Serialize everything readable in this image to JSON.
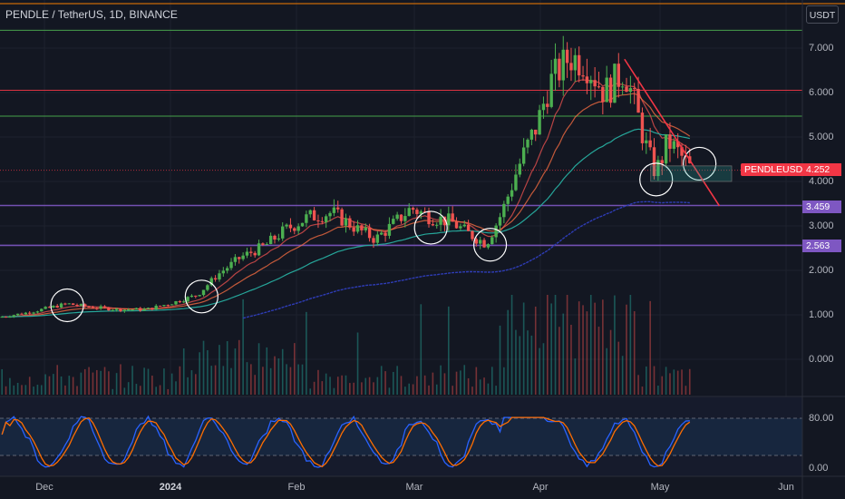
{
  "header": {
    "title": "PENDLE / TetherUS, 1D, BINANCE"
  },
  "toolbar": {
    "currency_label": "USDT"
  },
  "price_axis": {
    "labels": [
      "7.000",
      "6.000",
      "5.000",
      "4.000",
      "3.000",
      "2.000",
      "1.000",
      "0.000"
    ]
  },
  "time_axis": {
    "labels": [
      "Dec",
      "2024",
      "Feb",
      "Mar",
      "Apr",
      "May",
      "Jun"
    ]
  },
  "stoch_axis": {
    "labels": [
      "80.00",
      "0.00"
    ]
  },
  "tags": {
    "ticker": "PENDLEUSDT",
    "last_price": "4.252",
    "level_a": "3.459",
    "level_b": "2.563"
  },
  "colors": {
    "background": "#131722",
    "up": "#26a69a",
    "up_candle": "#4caf50",
    "down": "#ef5350",
    "purple_line": "#7e57c2",
    "green_line": "#4caf50",
    "red_line": "#f23645",
    "ema_teal": "#26a69a",
    "ema_navy": "#2e3cb5",
    "stoch_k": "#2962ff",
    "stoch_d": "#ff6d00"
  },
  "chart_data": {
    "type": "candlestick",
    "symbol": "PENDLE / TetherUS",
    "interval": "1D",
    "exchange": "BINANCE",
    "ylim": [
      -0.5,
      7.6
    ],
    "x_range": [
      "2023-11-18",
      "2024-06-08"
    ],
    "horizontal_levels": [
      {
        "price": 7.4,
        "color": "green"
      },
      {
        "price": 6.05,
        "color": "red"
      },
      {
        "price": 5.47,
        "color": "green"
      },
      {
        "price": 3.459,
        "color": "purple"
      },
      {
        "price": 2.563,
        "color": "purple"
      }
    ],
    "last_price": 4.252,
    "ohlc_path": [
      [
        "2023-11-18",
        0.95
      ],
      [
        "2023-11-25",
        1.05
      ],
      [
        "2023-11-30",
        1.15
      ],
      [
        "2023-12-05",
        1.25
      ],
      [
        "2023-12-10",
        1.18
      ],
      [
        "2023-12-18",
        1.12
      ],
      [
        "2023-12-25",
        1.12
      ],
      [
        "2024-01-01",
        1.28
      ],
      [
        "2024-01-07",
        1.45
      ],
      [
        "2024-01-12",
        1.9
      ],
      [
        "2024-01-18",
        2.3
      ],
      [
        "2024-01-24",
        2.55
      ],
      [
        "2024-01-29",
        2.9
      ],
      [
        "2024-02-04",
        3.2
      ],
      [
        "2024-02-10",
        3.3
      ],
      [
        "2024-02-16",
        2.95
      ],
      [
        "2024-02-21",
        2.7
      ],
      [
        "2024-02-25",
        3.0
      ],
      [
        "2024-03-01",
        3.4
      ],
      [
        "2024-03-06",
        3.2
      ],
      [
        "2024-03-11",
        3.1
      ],
      [
        "2024-03-16",
        2.8
      ],
      [
        "2024-03-20",
        2.6
      ],
      [
        "2024-03-24",
        3.3
      ],
      [
        "2024-03-28",
        4.3
      ],
      [
        "2024-04-02",
        5.3
      ],
      [
        "2024-04-05",
        6.2
      ],
      [
        "2024-04-10",
        6.8
      ],
      [
        "2024-04-14",
        6.7
      ],
      [
        "2024-04-19",
        6.0
      ],
      [
        "2024-04-24",
        6.5
      ],
      [
        "2024-04-27",
        5.6
      ],
      [
        "2024-04-30",
        4.6
      ],
      [
        "2024-05-02",
        4.2
      ],
      [
        "2024-05-05",
        4.9
      ],
      [
        "2024-05-08",
        4.6
      ],
      [
        "2024-05-11",
        4.25
      ]
    ],
    "annotations": {
      "circles_on_dates": [
        "2023-12-05",
        "2024-01-08",
        "2024-03-06",
        "2024-03-21",
        "2024-05-02",
        "2024-05-13"
      ],
      "downtrend_line": [
        [
          "2024-04-24",
          6.75
        ],
        [
          "2024-05-18",
          3.45
        ]
      ]
    },
    "indicators": {
      "stoch_rsi": {
        "levels": [
          80,
          20
        ],
        "ylim": [
          0,
          100
        ]
      }
    }
  }
}
